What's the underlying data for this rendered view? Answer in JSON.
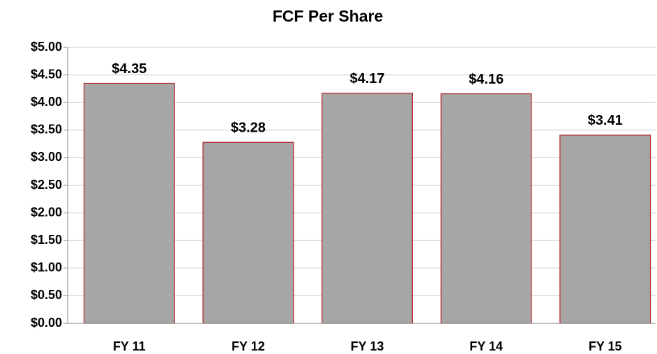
{
  "chart_data": {
    "type": "bar",
    "title": "FCF Per Share",
    "categories": [
      "FY 11",
      "FY 12",
      "FY 13",
      "FY 14",
      "FY 15"
    ],
    "values": [
      4.35,
      3.28,
      4.17,
      4.16,
      3.41
    ],
    "value_labels": [
      "$4.35",
      "$3.28",
      "$4.17",
      "$4.16",
      "$3.41"
    ],
    "color": "#a6a6a6",
    "edge_color": "#b22222",
    "ylim": [
      0,
      5
    ],
    "yticks": [
      {
        "value": 0,
        "label": "$0.00"
      },
      {
        "value": 0.5,
        "label": "$0.50"
      },
      {
        "value": 1,
        "label": "$1.00"
      },
      {
        "value": 1.5,
        "label": "$1.50"
      },
      {
        "value": 2,
        "label": "$2.00"
      },
      {
        "value": 2.5,
        "label": "$2.50"
      },
      {
        "value": 3,
        "label": "$3.00"
      },
      {
        "value": 3.5,
        "label": "$3.50"
      },
      {
        "value": 4,
        "label": "$4.00"
      },
      {
        "value": 4.5,
        "label": "$4.50"
      },
      {
        "value": 5,
        "label": "$5.00"
      }
    ],
    "grid": true
  }
}
